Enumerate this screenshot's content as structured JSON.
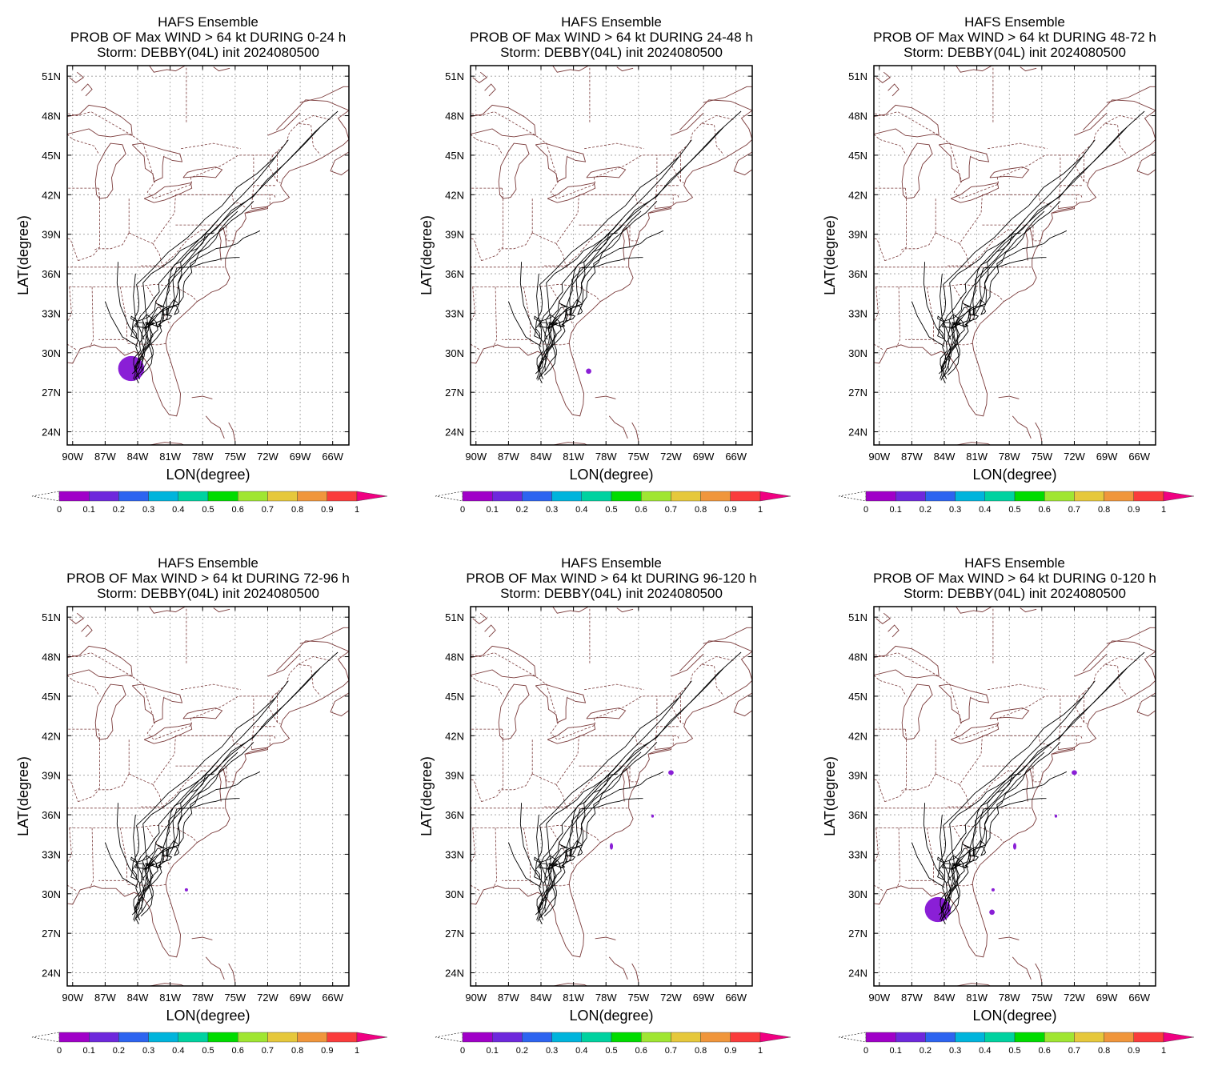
{
  "header": {
    "line1": "HAFS Ensemble",
    "line3": "Storm: DEBBY(04L) init 2024080500"
  },
  "axes": {
    "xlabel": "LON(degree)",
    "ylabel": "LAT(degree)",
    "lon_ticks": [
      "90W",
      "87W",
      "84W",
      "81W",
      "78W",
      "75W",
      "72W",
      "69W",
      "66W"
    ],
    "lon_values": [
      -90,
      -87,
      -84,
      -81,
      -78,
      -75,
      -72,
      -69,
      -66
    ],
    "lat_ticks": [
      "51N",
      "48N",
      "45N",
      "42N",
      "39N",
      "36N",
      "33N",
      "30N",
      "27N",
      "24N"
    ],
    "lat_values": [
      51,
      48,
      45,
      42,
      39,
      36,
      33,
      30,
      27,
      24
    ],
    "lon_range": [
      -90.5,
      -64.5
    ],
    "lat_range": [
      23.0,
      51.8
    ]
  },
  "colorbar": {
    "labels": [
      "0",
      "0.1",
      "0.2",
      "0.3",
      "0.4",
      "0.5",
      "0.6",
      "0.7",
      "0.8",
      "0.9",
      "1"
    ],
    "colors": [
      "#a000c8",
      "#6e28dc",
      "#2d64f0",
      "#00b4dc",
      "#00d2a0",
      "#00dc00",
      "#a0e632",
      "#e6c83c",
      "#f0963c",
      "#fa3c3c",
      "#f00082"
    ]
  },
  "colors": {
    "coast": "#7a3a3a",
    "track": "#000000",
    "grid": "#9a9a9a",
    "prob": "#8a1fd6"
  },
  "panels": [
    {
      "line2": "PROB OF Max WIND > 64 kt DURING  0-24 h",
      "blobs": [
        {
          "lon": -84.6,
          "lat": 28.8,
          "rx": 1.2,
          "ry": 0.95
        }
      ]
    },
    {
      "line2": "PROB OF Max WIND > 64 kt DURING 24-48 h",
      "blobs": [
        {
          "lon": -79.6,
          "lat": 28.6,
          "rx": 0.25,
          "ry": 0.2
        }
      ]
    },
    {
      "line2": "PROB OF Max WIND > 64 kt DURING 48-72 h",
      "blobs": []
    },
    {
      "line2": "PROB OF Max WIND > 64 kt DURING 72-96 h",
      "blobs": [
        {
          "lon": -79.5,
          "lat": 30.3,
          "rx": 0.15,
          "ry": 0.12
        }
      ]
    },
    {
      "line2": "PROB OF Max WIND > 64 kt DURING 96-120 h",
      "blobs": [
        {
          "lon": -72.0,
          "lat": 39.2,
          "rx": 0.25,
          "ry": 0.18
        },
        {
          "lon": -73.7,
          "lat": 35.9,
          "rx": 0.12,
          "ry": 0.12
        },
        {
          "lon": -77.5,
          "lat": 33.6,
          "rx": 0.15,
          "ry": 0.25
        }
      ]
    },
    {
      "line2": "PROB OF Max WIND > 64 kt DURING 0-120 h",
      "blobs": [
        {
          "lon": -84.6,
          "lat": 28.8,
          "rx": 1.2,
          "ry": 0.95
        },
        {
          "lon": -79.6,
          "lat": 28.6,
          "rx": 0.25,
          "ry": 0.2
        },
        {
          "lon": -79.5,
          "lat": 30.3,
          "rx": 0.15,
          "ry": 0.12
        },
        {
          "lon": -72.0,
          "lat": 39.2,
          "rx": 0.25,
          "ry": 0.18
        },
        {
          "lon": -73.7,
          "lat": 35.9,
          "rx": 0.12,
          "ry": 0.12
        },
        {
          "lon": -77.5,
          "lat": 33.6,
          "rx": 0.15,
          "ry": 0.25
        }
      ]
    }
  ]
}
